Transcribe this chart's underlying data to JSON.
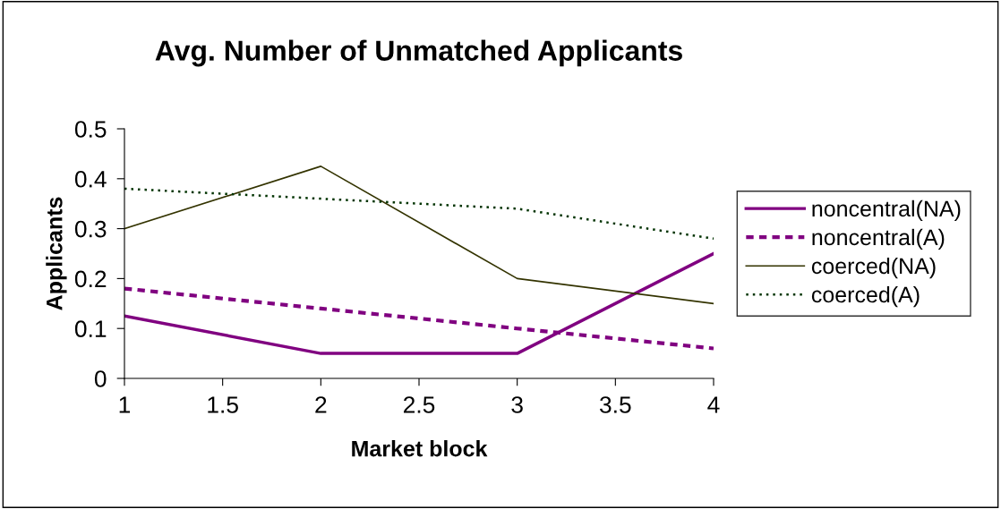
{
  "chart_data": {
    "type": "line",
    "title": "Avg. Number of Unmatched Applicants",
    "xlabel": "Market block",
    "ylabel": "Applicants",
    "x": [
      1,
      2,
      3,
      4
    ],
    "series": [
      {
        "name": "noncentral(NA)",
        "color": "#800080",
        "values": [
          0.125,
          0.05,
          0.05,
          0.25
        ],
        "line_style": "solid"
      },
      {
        "name": "noncentral(A)",
        "color": "#800080",
        "values": [
          0.18,
          0.14,
          0.1,
          0.06
        ],
        "line_style": "dashed"
      },
      {
        "name": "coerced(NA)",
        "color": "#333300",
        "values": [
          0.3,
          0.425,
          0.2,
          0.15
        ],
        "line_style": "solid"
      },
      {
        "name": "coerced(A)",
        "color": "#003300",
        "values": [
          0.38,
          0.36,
          0.34,
          0.28
        ],
        "line_style": "dotted"
      }
    ],
    "xlim": [
      1,
      4
    ],
    "xticks": [
      1,
      1.5,
      2,
      2.5,
      3,
      3.5,
      4
    ],
    "ylim": [
      0,
      0.5
    ],
    "yticks": [
      0,
      0.1,
      0.2,
      0.3,
      0.4,
      0.5
    ],
    "grid": false,
    "legend": "right",
    "marker": "none"
  }
}
